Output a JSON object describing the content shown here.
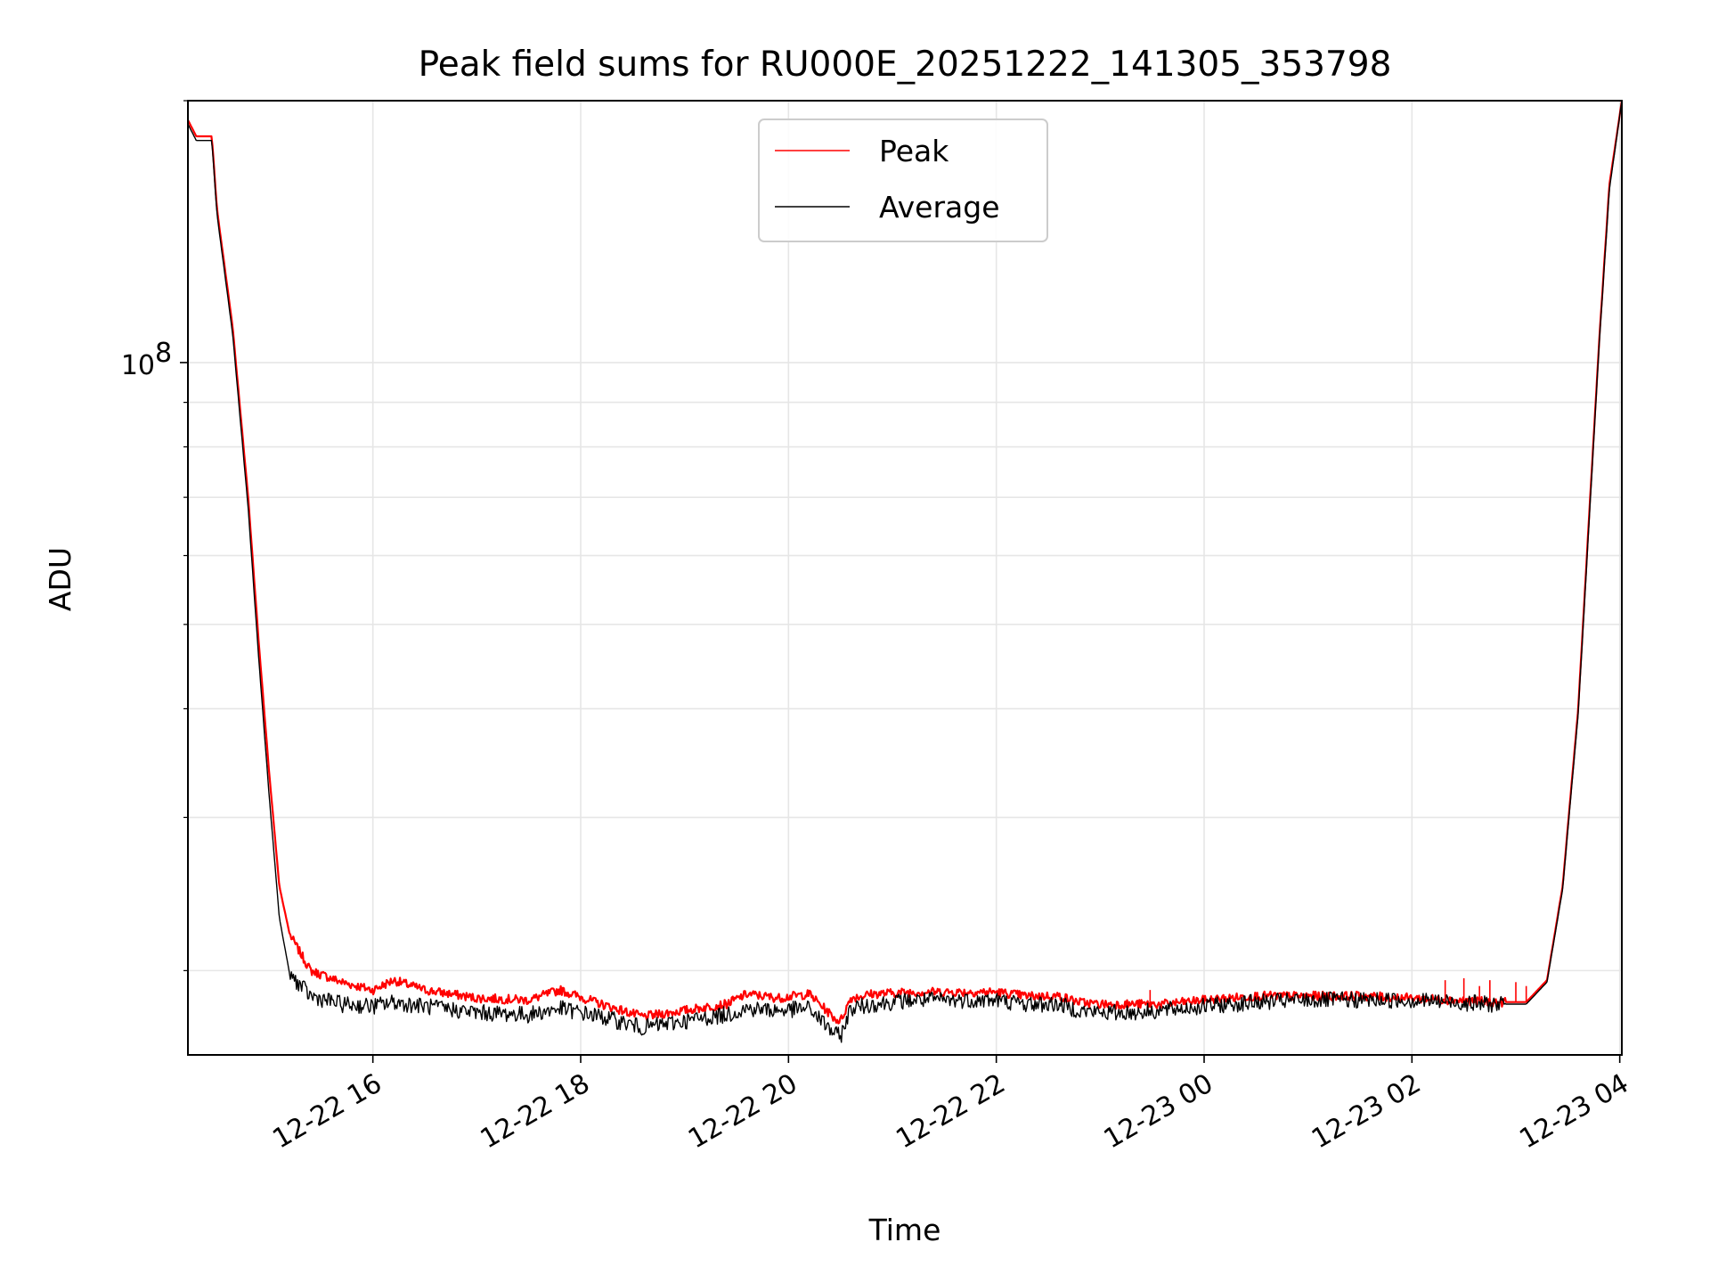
{
  "chart_data": {
    "type": "line",
    "title": "Peak field sums for RU000E_20251222_141305_353798",
    "xlabel": "Time",
    "ylabel": "ADU",
    "yscale": "log",
    "ylim": [
      16000000,
      200000000
    ],
    "xlim_hours_since_2025_12_22_00_00": [
      14.22,
      28.02
    ],
    "grid": true,
    "legend_position": "upper center",
    "x_ticks": [
      {
        "hour": 16,
        "label": "12-22 16"
      },
      {
        "hour": 18,
        "label": "12-22 18"
      },
      {
        "hour": 20,
        "label": "12-22 20"
      },
      {
        "hour": 22,
        "label": "12-22 22"
      },
      {
        "hour": 24,
        "label": "12-23 00"
      },
      {
        "hour": 26,
        "label": "12-23 02"
      },
      {
        "hour": 28,
        "label": "12-23 04"
      }
    ],
    "y_major_ticks": [
      {
        "value": 100000000,
        "base": "10",
        "exponent": "8"
      }
    ],
    "y_minor_ticks": [
      20000000,
      30000000,
      40000000,
      50000000,
      60000000,
      70000000,
      80000000,
      90000000,
      200000000
    ],
    "series": [
      {
        "name": "Peak",
        "color": "#ff0000",
        "x": [
          14.22,
          14.3,
          14.45,
          14.5,
          14.65,
          14.8,
          14.9,
          15.0,
          15.1,
          15.2,
          15.4,
          15.7,
          16.0,
          16.2,
          16.5,
          17.0,
          17.5,
          17.8,
          18.2,
          18.6,
          19.0,
          19.4,
          19.6,
          19.9,
          20.2,
          20.45,
          20.5,
          20.6,
          20.8,
          21.2,
          21.6,
          22.0,
          22.3,
          22.6,
          22.8,
          23.0,
          23.3,
          23.6,
          24.0,
          24.5,
          25.0,
          25.5,
          26.0,
          26.4,
          26.8,
          27.1,
          27.3,
          27.45,
          27.6,
          27.7,
          27.8,
          27.9,
          28.02
        ],
        "y": [
          190000000,
          182000000,
          182000000,
          150000000,
          110000000,
          70000000,
          48000000,
          34000000,
          25000000,
          22000000,
          20000000,
          19400000,
          19000000,
          19500000,
          19000000,
          18600000,
          18500000,
          19000000,
          18300000,
          17700000,
          18000000,
          18300000,
          18800000,
          18600000,
          18800000,
          17600000,
          17500000,
          18600000,
          18800000,
          18900000,
          18900000,
          18900000,
          18700000,
          18700000,
          18400000,
          18300000,
          18300000,
          18300000,
          18500000,
          18700000,
          18700000,
          18700000,
          18600000,
          18500000,
          18400000,
          18400000,
          19500000,
          25000000,
          40000000,
          65000000,
          105000000,
          160000000,
          200000000
        ]
      },
      {
        "name": "Average",
        "color": "#000000",
        "x": [
          14.22,
          14.3,
          14.45,
          14.5,
          14.65,
          14.8,
          14.9,
          15.0,
          15.1,
          15.2,
          15.4,
          15.7,
          16.0,
          16.2,
          16.5,
          17.0,
          17.5,
          17.8,
          18.2,
          18.6,
          19.0,
          19.4,
          19.6,
          19.9,
          20.2,
          20.45,
          20.5,
          20.6,
          20.8,
          21.2,
          21.6,
          22.0,
          22.3,
          22.6,
          22.8,
          23.0,
          23.3,
          23.6,
          24.0,
          24.5,
          25.0,
          25.5,
          26.0,
          26.4,
          26.8,
          27.1,
          27.3,
          27.45,
          27.6,
          27.7,
          27.8,
          27.9,
          28.02
        ],
        "y": [
          188000000,
          180000000,
          180000000,
          148000000,
          108000000,
          68000000,
          46000000,
          32000000,
          23000000,
          19800000,
          18700000,
          18300000,
          18200000,
          18400000,
          18200000,
          17900000,
          17800000,
          18100000,
          17700000,
          17200000,
          17500000,
          17800000,
          18100000,
          18000000,
          18100000,
          16900000,
          16800000,
          18100000,
          18300000,
          18500000,
          18500000,
          18500000,
          18300000,
          18300000,
          18000000,
          17900000,
          17900000,
          18000000,
          18200000,
          18400000,
          18500000,
          18500000,
          18500000,
          18400000,
          18300000,
          18300000,
          19400000,
          24800000,
          39500000,
          64000000,
          104000000,
          158000000,
          200000000
        ]
      }
    ],
    "spikes": {
      "series": "Peak",
      "items": [
        {
          "x": 23.48,
          "y": 19000000
        },
        {
          "x": 26.32,
          "y": 19500000
        },
        {
          "x": 26.5,
          "y": 19600000
        },
        {
          "x": 26.65,
          "y": 19200000
        },
        {
          "x": 26.75,
          "y": 19500000
        },
        {
          "x": 27.0,
          "y": 19400000
        },
        {
          "x": 27.1,
          "y": 19200000
        }
      ]
    }
  }
}
